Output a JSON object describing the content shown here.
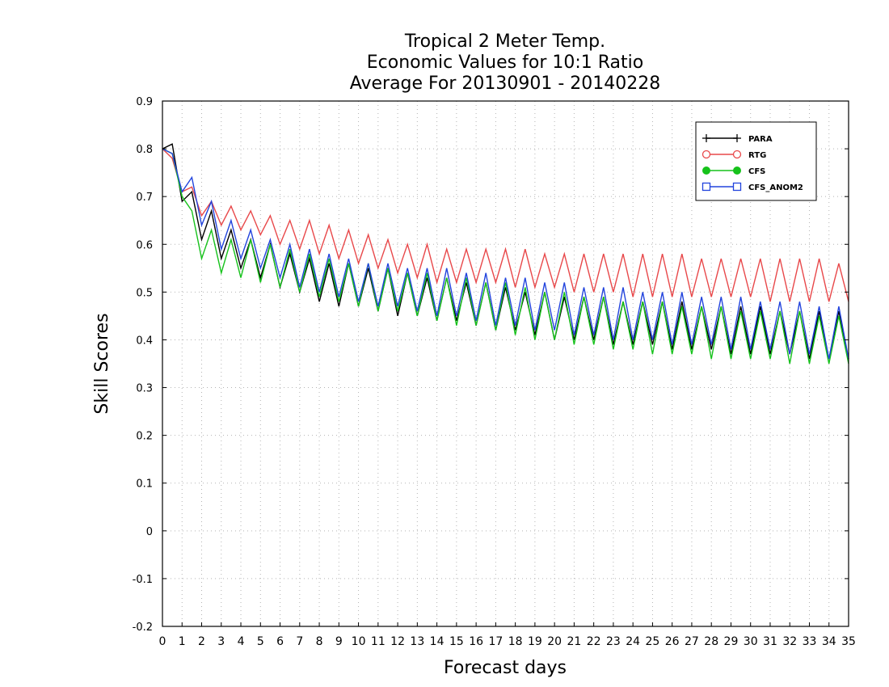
{
  "chart_data": {
    "type": "line",
    "title_lines": [
      "Tropical 2 Meter Temp.",
      "Economic Values for 10:1 Ratio",
      "Average For 20130901 - 20140228"
    ],
    "xlabel": "Forecast days",
    "ylabel": "Skill Scores",
    "xlim": [
      0,
      35
    ],
    "ylim": [
      -0.2,
      0.9
    ],
    "x_ticks": [
      0,
      1,
      2,
      3,
      4,
      5,
      6,
      7,
      8,
      9,
      10,
      11,
      12,
      13,
      14,
      15,
      16,
      17,
      18,
      19,
      20,
      21,
      22,
      23,
      24,
      25,
      26,
      27,
      28,
      29,
      30,
      31,
      32,
      33,
      34,
      35
    ],
    "y_ticks": [
      -0.2,
      -0.1,
      0,
      0.1,
      0.2,
      0.3,
      0.4,
      0.5,
      0.6,
      0.7,
      0.8,
      0.9
    ],
    "y_tick_labels": [
      "-0.2",
      "-0.1",
      "0",
      "0.1",
      "0.2",
      "0.3",
      "0.4",
      "0.5",
      "0.6",
      "0.7",
      "0.8",
      "0.9"
    ],
    "grid": true,
    "legend_position": "top-right",
    "x": [
      0,
      0.5,
      1,
      1.5,
      2,
      2.5,
      3,
      3.5,
      4,
      4.5,
      5,
      5.5,
      6,
      6.5,
      7,
      7.5,
      8,
      8.5,
      9,
      9.5,
      10,
      10.5,
      11,
      11.5,
      12,
      12.5,
      13,
      13.5,
      14,
      14.5,
      15,
      15.5,
      16,
      16.5,
      17,
      17.5,
      18,
      18.5,
      19,
      19.5,
      20,
      20.5,
      21,
      21.5,
      22,
      22.5,
      23,
      23.5,
      24,
      24.5,
      25,
      25.5,
      26,
      26.5,
      27,
      27.5,
      28,
      28.5,
      29,
      29.5,
      30,
      30.5,
      31,
      31.5,
      32,
      32.5,
      33,
      33.5,
      34,
      34.5,
      35
    ],
    "series": [
      {
        "name": "PARA",
        "color": "#000000",
        "marker": "plus",
        "values": [
          0.8,
          0.81,
          0.69,
          0.71,
          0.61,
          0.67,
          0.57,
          0.63,
          0.55,
          0.61,
          0.53,
          0.6,
          0.51,
          0.58,
          0.5,
          0.57,
          0.48,
          0.56,
          0.47,
          0.56,
          0.47,
          0.55,
          0.46,
          0.55,
          0.45,
          0.54,
          0.45,
          0.53,
          0.44,
          0.53,
          0.44,
          0.52,
          0.43,
          0.52,
          0.42,
          0.51,
          0.42,
          0.5,
          0.41,
          0.5,
          0.4,
          0.49,
          0.4,
          0.49,
          0.4,
          0.49,
          0.39,
          0.48,
          0.39,
          0.48,
          0.39,
          0.48,
          0.38,
          0.48,
          0.38,
          0.47,
          0.38,
          0.47,
          0.37,
          0.47,
          0.37,
          0.47,
          0.37,
          0.46,
          0.37,
          0.46,
          0.36,
          0.46,
          0.36,
          0.46,
          0.36
        ]
      },
      {
        "name": "RTG",
        "color": "#e8484a",
        "marker": "circle-open",
        "values": [
          0.8,
          0.78,
          0.71,
          0.72,
          0.66,
          0.69,
          0.64,
          0.68,
          0.63,
          0.67,
          0.62,
          0.66,
          0.6,
          0.65,
          0.59,
          0.65,
          0.58,
          0.64,
          0.57,
          0.63,
          0.56,
          0.62,
          0.55,
          0.61,
          0.54,
          0.6,
          0.53,
          0.6,
          0.52,
          0.59,
          0.52,
          0.59,
          0.52,
          0.59,
          0.52,
          0.59,
          0.51,
          0.59,
          0.51,
          0.58,
          0.51,
          0.58,
          0.5,
          0.58,
          0.5,
          0.58,
          0.5,
          0.58,
          0.49,
          0.58,
          0.49,
          0.58,
          0.49,
          0.58,
          0.49,
          0.57,
          0.49,
          0.57,
          0.49,
          0.57,
          0.49,
          0.57,
          0.48,
          0.57,
          0.48,
          0.57,
          0.48,
          0.57,
          0.48,
          0.56,
          0.48
        ]
      },
      {
        "name": "CFS",
        "color": "#16c21b",
        "marker": "circle-filled",
        "values": [
          0.8,
          0.79,
          0.7,
          0.67,
          0.57,
          0.63,
          0.54,
          0.61,
          0.53,
          0.61,
          0.52,
          0.6,
          0.51,
          0.59,
          0.5,
          0.58,
          0.49,
          0.57,
          0.48,
          0.56,
          0.47,
          0.56,
          0.46,
          0.55,
          0.46,
          0.54,
          0.45,
          0.54,
          0.44,
          0.53,
          0.43,
          0.53,
          0.43,
          0.52,
          0.42,
          0.52,
          0.41,
          0.51,
          0.4,
          0.5,
          0.4,
          0.5,
          0.39,
          0.49,
          0.39,
          0.49,
          0.38,
          0.48,
          0.38,
          0.48,
          0.37,
          0.48,
          0.37,
          0.47,
          0.37,
          0.47,
          0.36,
          0.47,
          0.36,
          0.46,
          0.36,
          0.46,
          0.36,
          0.46,
          0.35,
          0.46,
          0.35,
          0.45,
          0.35,
          0.45,
          0.35
        ]
      },
      {
        "name": "CFS_ANOM2",
        "color": "#2244dd",
        "marker": "square-open",
        "values": [
          0.8,
          0.79,
          0.71,
          0.74,
          0.64,
          0.69,
          0.59,
          0.65,
          0.57,
          0.63,
          0.55,
          0.61,
          0.53,
          0.6,
          0.51,
          0.59,
          0.5,
          0.58,
          0.49,
          0.57,
          0.48,
          0.56,
          0.47,
          0.56,
          0.47,
          0.55,
          0.46,
          0.55,
          0.45,
          0.55,
          0.45,
          0.54,
          0.44,
          0.54,
          0.43,
          0.53,
          0.43,
          0.53,
          0.42,
          0.52,
          0.42,
          0.52,
          0.41,
          0.51,
          0.41,
          0.51,
          0.4,
          0.51,
          0.4,
          0.5,
          0.4,
          0.5,
          0.39,
          0.5,
          0.39,
          0.49,
          0.39,
          0.49,
          0.38,
          0.49,
          0.38,
          0.48,
          0.38,
          0.48,
          0.37,
          0.48,
          0.37,
          0.47,
          0.36,
          0.47,
          0.36
        ]
      }
    ]
  }
}
